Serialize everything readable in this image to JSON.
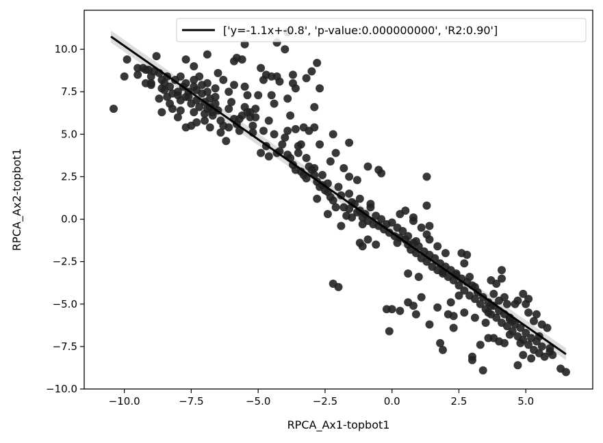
{
  "chart_data": {
    "type": "scatter",
    "title": "",
    "xlabel": "RPCA_Ax1-topbot1",
    "ylabel": "RPCA_Ax2-topbot1",
    "xlim": [
      -11.5,
      7.5
    ],
    "ylim": [
      -10.0,
      12.3
    ],
    "xticks": [
      -10.0,
      -7.5,
      -5.0,
      -2.5,
      0.0,
      2.5,
      5.0
    ],
    "xtick_labels": [
      "−10.0",
      "−7.5",
      "−5.0",
      "−2.5",
      "0.0",
      "2.5",
      "5.0"
    ],
    "yticks": [
      -10.0,
      -7.5,
      -5.0,
      -2.5,
      0.0,
      2.5,
      5.0,
      7.5,
      10.0
    ],
    "ytick_labels": [
      "−10.0",
      "−7.5",
      "−5.0",
      "−2.5",
      "0.0",
      "2.5",
      "5.0",
      "7.5",
      "10.0"
    ],
    "grid": false,
    "legend": {
      "position": "top-right",
      "entries": [
        "['y=-1.1x+-0.8', 'p-value:0.000000000', 'R2:0.90']"
      ]
    },
    "point_color": "#222222",
    "line_color": "#000000",
    "fit_line": {
      "slope": -1.1,
      "intercept": -0.8,
      "x_range": [
        -10.5,
        6.5
      ]
    },
    "points": [
      [
        -10.4,
        6.5
      ],
      [
        -10.0,
        8.4
      ],
      [
        -9.9,
        9.4
      ],
      [
        -9.5,
        8.9
      ],
      [
        -9.3,
        8.9
      ],
      [
        -9.1,
        8.8
      ],
      [
        -9.0,
        8.4
      ],
      [
        -9.0,
        8.0
      ],
      [
        -8.9,
        8.7
      ],
      [
        -8.8,
        9.6
      ],
      [
        -8.7,
        8.6
      ],
      [
        -8.6,
        8.2
      ],
      [
        -8.6,
        7.7
      ],
      [
        -8.5,
        8.0
      ],
      [
        -8.4,
        8.4
      ],
      [
        -8.4,
        7.2
      ],
      [
        -8.3,
        6.8
      ],
      [
        -8.2,
        6.5
      ],
      [
        -8.1,
        8.2
      ],
      [
        -8.0,
        7.5
      ],
      [
        -7.9,
        7.0
      ],
      [
        -7.9,
        6.4
      ],
      [
        -7.8,
        7.8
      ],
      [
        -7.7,
        8.0
      ],
      [
        -7.6,
        7.5
      ],
      [
        -7.6,
        7.2
      ],
      [
        -7.5,
        6.8
      ],
      [
        -7.4,
        6.3
      ],
      [
        -7.4,
        8.2
      ],
      [
        -7.3,
        7.6
      ],
      [
        -7.3,
        7.0
      ],
      [
        -7.2,
        6.6
      ],
      [
        -7.2,
        8.4
      ],
      [
        -7.1,
        7.4
      ],
      [
        -7.0,
        6.9
      ],
      [
        -7.0,
        6.2
      ],
      [
        -6.9,
        8.0
      ],
      [
        -6.9,
        7.5
      ],
      [
        -6.8,
        7.1
      ],
      [
        -6.8,
        6.6
      ],
      [
        -6.7,
        6.1
      ],
      [
        -6.6,
        7.7
      ],
      [
        -6.6,
        7.2
      ],
      [
        -6.5,
        6.4
      ],
      [
        -6.4,
        5.8
      ],
      [
        -6.3,
        5.5
      ],
      [
        -6.2,
        4.6
      ],
      [
        -6.1,
        6.5
      ],
      [
        -6.0,
        6.9
      ],
      [
        -5.9,
        5.9
      ],
      [
        -5.8,
        5.6
      ],
      [
        -5.7,
        5.2
      ],
      [
        -5.6,
        6.1
      ],
      [
        -5.5,
        6.6
      ],
      [
        -5.4,
        7.3
      ],
      [
        -5.3,
        6.3
      ],
      [
        -5.2,
        5.1
      ],
      [
        -5.1,
        6.5
      ],
      [
        -9.2,
        8.8
      ],
      [
        -8.5,
        7.6
      ],
      [
        -8.3,
        7.8
      ],
      [
        -8.0,
        7.3
      ],
      [
        -8.6,
        6.3
      ],
      [
        -8.7,
        7.1
      ],
      [
        -9.0,
        7.9
      ],
      [
        -9.2,
        8.0
      ],
      [
        -8.2,
        7.4
      ],
      [
        -7.9,
        8.4
      ],
      [
        -7.7,
        7.2
      ],
      [
        -7.4,
        7.8
      ],
      [
        -7.1,
        7.9
      ],
      [
        -6.9,
        6.5
      ],
      [
        -6.6,
        6.8
      ],
      [
        -6.5,
        8.6
      ],
      [
        -6.3,
        8.2
      ],
      [
        -6.1,
        7.5
      ],
      [
        -5.9,
        7.9
      ],
      [
        -5.8,
        9.5
      ],
      [
        -5.6,
        9.4
      ],
      [
        -5.5,
        7.8
      ],
      [
        -5.3,
        6.0
      ],
      [
        -5.2,
        5.5
      ],
      [
        -5.0,
        7.3
      ],
      [
        -4.9,
        8.9
      ],
      [
        -4.8,
        5.2
      ],
      [
        -4.7,
        8.5
      ],
      [
        -4.6,
        5.8
      ],
      [
        -4.5,
        7.3
      ],
      [
        -4.4,
        5.0
      ],
      [
        -4.3,
        3.9
      ],
      [
        -4.2,
        4.0
      ],
      [
        -4.1,
        4.4
      ],
      [
        -4.0,
        4.8
      ],
      [
        -3.9,
        5.2
      ],
      [
        -3.8,
        3.6
      ],
      [
        -3.7,
        3.2
      ],
      [
        -3.6,
        2.9
      ],
      [
        -3.5,
        3.9
      ],
      [
        -3.4,
        2.8
      ],
      [
        -3.3,
        2.6
      ],
      [
        -3.2,
        2.4
      ],
      [
        -3.1,
        3.1
      ],
      [
        -3.0,
        2.9
      ],
      [
        -2.9,
        2.6
      ],
      [
        -2.8,
        2.2
      ],
      [
        -2.7,
        1.9
      ],
      [
        -2.6,
        2.0
      ],
      [
        -2.5,
        1.7
      ],
      [
        -2.4,
        1.6
      ],
      [
        -2.3,
        1.3
      ],
      [
        -2.2,
        1.1
      ],
      [
        -2.1,
        0.7
      ],
      [
        -2.0,
        1.9
      ],
      [
        -1.9,
        1.4
      ],
      [
        -1.8,
        0.7
      ],
      [
        -1.7,
        0.2
      ],
      [
        -1.6,
        0.6
      ],
      [
        -1.5,
        1.0
      ],
      [
        -1.4,
        0.9
      ],
      [
        -1.3,
        0.4
      ],
      [
        -1.2,
        0.5
      ],
      [
        -1.1,
        0.1
      ],
      [
        -1.0,
        0.3
      ],
      [
        -0.9,
        -0.1
      ],
      [
        -0.8,
        0.7
      ],
      [
        -0.7,
        -0.3
      ],
      [
        -0.6,
        0.2
      ],
      [
        -0.5,
        -0.4
      ],
      [
        -0.4,
        0.0
      ],
      [
        -0.3,
        -0.6
      ],
      [
        -0.2,
        -0.3
      ],
      [
        -0.1,
        -0.8
      ],
      [
        0.0,
        -0.2
      ],
      [
        0.1,
        -1.0
      ],
      [
        0.2,
        -0.5
      ],
      [
        0.3,
        -1.1
      ],
      [
        0.4,
        -0.7
      ],
      [
        0.5,
        -1.2
      ],
      [
        0.6,
        -1.0
      ],
      [
        0.7,
        -1.8
      ],
      [
        0.8,
        -1.4
      ],
      [
        0.9,
        -2.0
      ],
      [
        1.0,
        -1.6
      ],
      [
        1.1,
        -2.3
      ],
      [
        1.2,
        -1.9
      ],
      [
        1.3,
        -2.5
      ],
      [
        1.4,
        -2.1
      ],
      [
        1.5,
        -2.8
      ],
      [
        1.6,
        -2.3
      ],
      [
        1.7,
        -3.0
      ],
      [
        1.8,
        -2.6
      ],
      [
        1.9,
        -3.1
      ],
      [
        2.0,
        -2.8
      ],
      [
        2.1,
        -3.4
      ],
      [
        2.2,
        -3.0
      ],
      [
        2.3,
        -3.6
      ],
      [
        2.4,
        -3.2
      ],
      [
        2.5,
        -3.9
      ],
      [
        2.6,
        -3.5
      ],
      [
        2.7,
        -4.2
      ],
      [
        2.8,
        -3.7
      ],
      [
        2.9,
        -4.5
      ],
      [
        3.0,
        -3.9
      ],
      [
        3.1,
        -4.7
      ],
      [
        3.2,
        -4.3
      ],
      [
        3.3,
        -5.0
      ],
      [
        3.4,
        -4.6
      ],
      [
        3.5,
        -5.3
      ],
      [
        3.6,
        -4.9
      ],
      [
        3.7,
        -5.6
      ],
      [
        3.8,
        -5.1
      ],
      [
        3.9,
        -5.8
      ],
      [
        4.0,
        -5.4
      ],
      [
        4.1,
        -6.1
      ],
      [
        4.2,
        -5.6
      ],
      [
        4.3,
        -6.3
      ],
      [
        4.4,
        -5.9
      ],
      [
        4.5,
        -6.6
      ],
      [
        4.6,
        -6.2
      ],
      [
        4.7,
        -6.9
      ],
      [
        4.8,
        -6.4
      ],
      [
        4.9,
        -7.1
      ],
      [
        5.0,
        -6.7
      ],
      [
        5.1,
        -7.4
      ],
      [
        5.2,
        -7.0
      ],
      [
        5.3,
        -7.7
      ],
      [
        5.4,
        -7.2
      ],
      [
        5.5,
        -7.9
      ],
      [
        5.6,
        -7.5
      ],
      [
        5.7,
        -8.1
      ],
      [
        -6.1,
        5.4
      ],
      [
        -5.7,
        5.9
      ],
      [
        -5.4,
        6.3
      ],
      [
        -5.1,
        6.0
      ],
      [
        -6.7,
        6.3
      ],
      [
        -7.5,
        5.5
      ],
      [
        -7.3,
        5.7
      ],
      [
        -7.7,
        5.4
      ],
      [
        -8.0,
        6.0
      ],
      [
        -7.0,
        5.8
      ],
      [
        -6.8,
        5.4
      ],
      [
        -6.4,
        5.1
      ],
      [
        -4.6,
        3.7
      ],
      [
        -3.9,
        3.8
      ],
      [
        -3.5,
        4.3
      ],
      [
        -3.2,
        3.6
      ],
      [
        -2.9,
        3.0
      ],
      [
        -2.6,
        2.6
      ],
      [
        -2.4,
        2.1
      ],
      [
        -1.6,
        1.5
      ],
      [
        -1.2,
        1.2
      ],
      [
        -0.8,
        0.9
      ],
      [
        0.3,
        0.3
      ],
      [
        0.5,
        0.5
      ],
      [
        0.8,
        -0.1
      ],
      [
        1.1,
        -0.5
      ],
      [
        1.3,
        -0.9
      ],
      [
        1.4,
        -1.2
      ],
      [
        1.7,
        -1.6
      ],
      [
        2.0,
        -2.0
      ],
      [
        -4.9,
        3.9
      ],
      [
        -4.7,
        4.3
      ],
      [
        -2.8,
        1.2
      ],
      [
        -2.4,
        0.3
      ],
      [
        -1.9,
        -0.4
      ],
      [
        -1.5,
        0.1
      ],
      [
        -1.1,
        -0.3
      ],
      [
        0.2,
        -1.4
      ],
      [
        0.6,
        -1.5
      ],
      [
        0.9,
        -1.3
      ],
      [
        -1.8,
        3.0
      ],
      [
        -1.3,
        2.3
      ],
      [
        -0.9,
        3.1
      ],
      [
        -0.5,
        2.9
      ],
      [
        -0.4,
        2.7
      ],
      [
        -1.6,
        2.5
      ],
      [
        -2.1,
        3.9
      ],
      [
        -1.6,
        4.5
      ],
      [
        -2.3,
        3.4
      ],
      [
        -3.4,
        4.4
      ],
      [
        -3.6,
        5.3
      ],
      [
        -3.1,
        5.2
      ],
      [
        -3.3,
        5.4
      ],
      [
        -2.2,
        5.0
      ],
      [
        -2.7,
        4.4
      ],
      [
        -2.9,
        5.4
      ],
      [
        -3.8,
        6.1
      ],
      [
        -4.4,
        6.8
      ],
      [
        -4.2,
        8.1
      ],
      [
        -3.9,
        7.1
      ],
      [
        -3.6,
        7.7
      ],
      [
        -3.2,
        8.3
      ],
      [
        -3.0,
        8.7
      ],
      [
        -2.7,
        7.7
      ],
      [
        -2.8,
        9.2
      ],
      [
        -4.8,
        8.2
      ],
      [
        -4.5,
        8.4
      ],
      [
        -4.3,
        8.4
      ],
      [
        -3.7,
        8.0
      ],
      [
        -3.7,
        8.5
      ],
      [
        -5.9,
        9.3
      ],
      [
        -5.5,
        10.3
      ],
      [
        -4.3,
        10.4
      ],
      [
        -3.9,
        11.0
      ],
      [
        -4.0,
        10.0
      ],
      [
        -2.9,
        6.6
      ],
      [
        -6.9,
        9.7
      ],
      [
        -7.4,
        9.0
      ],
      [
        -7.7,
        9.4
      ],
      [
        -9.5,
        8.5
      ],
      [
        -2.2,
        -3.8
      ],
      [
        -2.0,
        -4.0
      ],
      [
        -1.2,
        -1.4
      ],
      [
        -1.1,
        -1.6
      ],
      [
        -0.9,
        -1.2
      ],
      [
        -0.6,
        -1.5
      ],
      [
        1.3,
        2.5
      ],
      [
        1.3,
        0.8
      ],
      [
        1.4,
        -0.4
      ],
      [
        0.8,
        0.1
      ],
      [
        0.3,
        -5.4
      ],
      [
        0.6,
        -4.9
      ],
      [
        0.8,
        -5.1
      ],
      [
        0.9,
        -5.6
      ],
      [
        1.1,
        -4.6
      ],
      [
        0.0,
        -5.3
      ],
      [
        -0.2,
        -5.3
      ],
      [
        -0.1,
        -6.6
      ],
      [
        0.6,
        -3.2
      ],
      [
        1.0,
        -3.4
      ],
      [
        1.9,
        -3.2
      ],
      [
        2.2,
        -4.9
      ],
      [
        2.5,
        -4.5
      ],
      [
        2.1,
        -5.6
      ],
      [
        2.3,
        -5.7
      ],
      [
        2.7,
        -5.5
      ],
      [
        2.8,
        -2.1
      ],
      [
        2.7,
        -2.6
      ],
      [
        2.6,
        -2.0
      ],
      [
        1.8,
        -7.3
      ],
      [
        1.9,
        -7.7
      ],
      [
        3.0,
        -8.1
      ],
      [
        3.0,
        -8.3
      ],
      [
        3.4,
        -8.9
      ],
      [
        3.3,
        -7.4
      ],
      [
        3.1,
        -5.8
      ],
      [
        3.6,
        -7.0
      ],
      [
        3.6,
        -5.5
      ],
      [
        3.9,
        -3.8
      ],
      [
        3.8,
        -4.4
      ],
      [
        4.0,
        -4.8
      ],
      [
        4.1,
        -3.0
      ],
      [
        4.1,
        -3.5
      ],
      [
        4.2,
        -4.6
      ],
      [
        4.3,
        -5.0
      ],
      [
        4.2,
        -7.3
      ],
      [
        4.0,
        -7.2
      ],
      [
        3.8,
        -7.0
      ],
      [
        4.7,
        -8.6
      ],
      [
        4.9,
        -8.0
      ],
      [
        5.0,
        -5.0
      ],
      [
        4.9,
        -4.4
      ],
      [
        4.7,
        -4.8
      ],
      [
        5.3,
        -6.0
      ],
      [
        5.4,
        -5.6
      ],
      [
        5.6,
        -6.2
      ],
      [
        5.8,
        -6.4
      ],
      [
        5.9,
        -7.6
      ],
      [
        5.9,
        -7.8
      ],
      [
        5.2,
        -8.2
      ],
      [
        6.3,
        -8.8
      ],
      [
        6.5,
        -9.0
      ],
      [
        6.0,
        -8.0
      ],
      [
        5.1,
        -4.7
      ],
      [
        4.6,
        -5.0
      ],
      [
        4.4,
        -5.8
      ],
      [
        3.7,
        -5.1
      ],
      [
        3.5,
        -6.1
      ],
      [
        2.3,
        -6.4
      ],
      [
        1.4,
        -6.2
      ],
      [
        1.7,
        -5.2
      ],
      [
        2.4,
        -3.3
      ],
      [
        2.9,
        -3.4
      ],
      [
        3.1,
        -4.0
      ],
      [
        3.7,
        -3.6
      ],
      [
        4.5,
        -6.0
      ],
      [
        5.5,
        -6.9
      ],
      [
        5.1,
        -5.5
      ],
      [
        4.4,
        -6.8
      ],
      [
        4.8,
        -7.3
      ]
    ]
  }
}
